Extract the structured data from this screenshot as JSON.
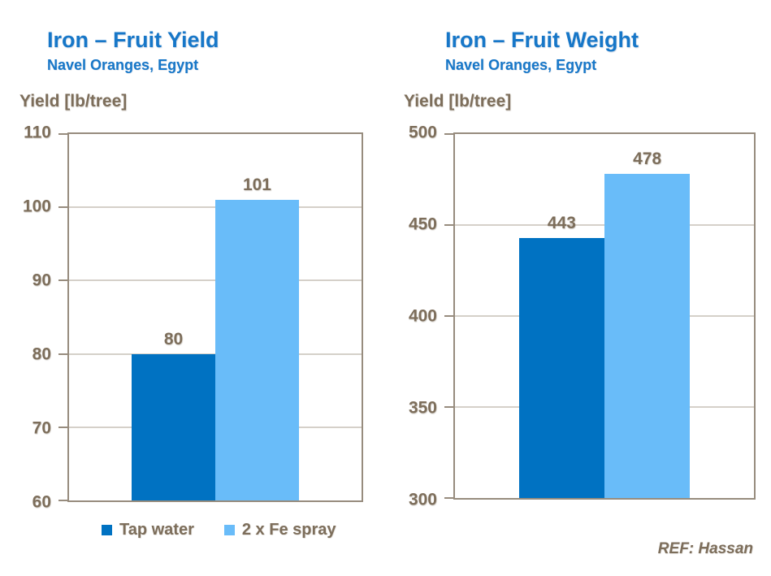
{
  "page": {
    "background": "#FFFFFF",
    "ref_label": "REF: Hassan"
  },
  "colors": {
    "title_blue": "#1777C8",
    "series_dark_blue": "#0072C2",
    "series_light_blue": "#69BCF9",
    "axis_grid": "#978C7E",
    "text_brown": "#7D6E5B"
  },
  "legend": {
    "items": [
      {
        "label": "Tap water",
        "color": "#0072C2"
      },
      {
        "label": "2 x Fe spray",
        "color": "#69BCF9"
      }
    ]
  },
  "chart_data": [
    {
      "type": "bar",
      "title": "Iron – Fruit Yield",
      "subtitle": "Navel Oranges, Egypt",
      "ylabel": "Yield [lb/tree]",
      "xlabel": "",
      "categories": [
        "Tap water",
        "2 x Fe spray"
      ],
      "values": [
        80,
        101
      ],
      "series_colors": [
        "#0072C2",
        "#69BCF9"
      ],
      "ylim": [
        60,
        110
      ],
      "yticks": [
        60,
        70,
        80,
        90,
        100,
        110
      ],
      "grid": true,
      "legend_position": "bottom"
    },
    {
      "type": "bar",
      "title": "Iron – Fruit Weight",
      "subtitle": "Navel Oranges, Egypt",
      "ylabel": "Yield [lb/tree]",
      "xlabel": "",
      "categories": [
        "Tap water",
        "2 x Fe spray"
      ],
      "values": [
        443,
        478
      ],
      "series_colors": [
        "#0072C2",
        "#69BCF9"
      ],
      "ylim": [
        300,
        500
      ],
      "yticks": [
        300,
        350,
        400,
        450,
        500
      ],
      "grid": true,
      "legend_position": "none"
    }
  ]
}
